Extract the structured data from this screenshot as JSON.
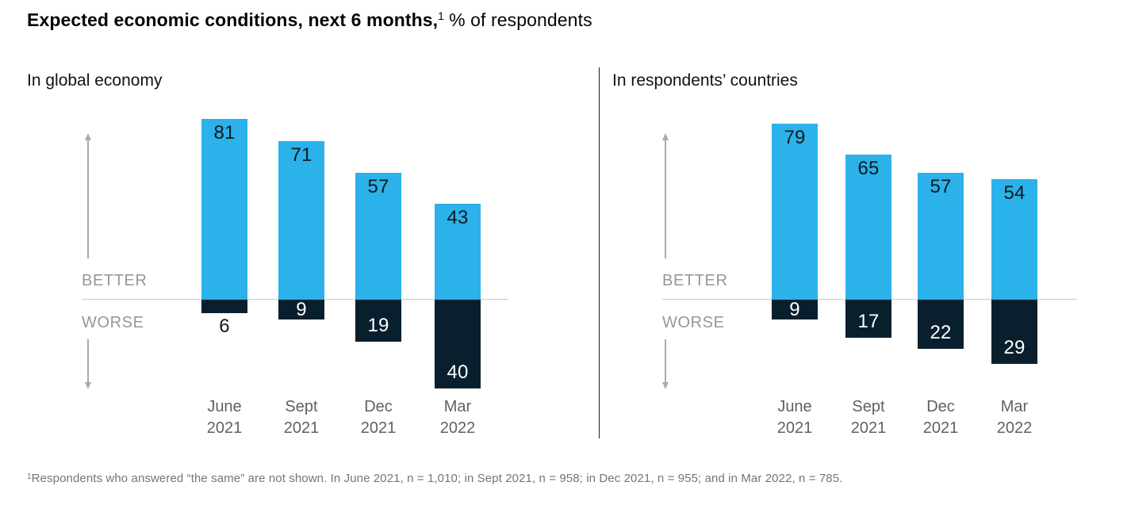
{
  "title": {
    "main_bold": "Expected economic conditions, next 6 months,",
    "superscript": "1",
    "main_regular": "% of respondents"
  },
  "footnote": {
    "superscript": "1",
    "text": "Respondents who answered “the same” are not shown. In June 2021, n = 1,010; in Sept 2021, n = 958; in Dec 2021, n = 955; and in Mar 2022, n = 785."
  },
  "colors": {
    "better_bar": "#2BB2EA",
    "worse_bar": "#0A1F2E",
    "value_dark": "#101820",
    "value_light": "#FFFFFF",
    "axis_label": "#95979A",
    "cat_label": "#5E6166",
    "baseline": "#C9CACB",
    "arrow": "#A8AAAC",
    "divider": "#1F1F1F",
    "footnote": "#737577",
    "title_color": "#050505",
    "panel_title": "#121212"
  },
  "chart_data": [
    {
      "type": "bar",
      "title": "In global economy",
      "categories": [
        "June 2021",
        "Sept 2021",
        "Dec 2021",
        "Mar 2022"
      ],
      "series": [
        {
          "name": "Better",
          "values": [
            81,
            71,
            57,
            43
          ]
        },
        {
          "name": "Worse",
          "values": [
            6,
            9,
            19,
            40
          ]
        }
      ],
      "better_label": "BETTER",
      "worse_label": "WORSE",
      "unit": "% of respondents",
      "baseline_value": 0,
      "legend": "none",
      "grid": "off"
    },
    {
      "type": "bar",
      "title": "In respondents’ countries",
      "categories": [
        "June 2021",
        "Sept 2021",
        "Dec 2021",
        "Mar 2022"
      ],
      "series": [
        {
          "name": "Better",
          "values": [
            79,
            65,
            57,
            54
          ]
        },
        {
          "name": "Worse",
          "values": [
            9,
            17,
            22,
            29
          ]
        }
      ],
      "better_label": "BETTER",
      "worse_label": "WORSE",
      "unit": "% of respondents",
      "baseline_value": 0,
      "legend": "none",
      "grid": "off"
    }
  ]
}
